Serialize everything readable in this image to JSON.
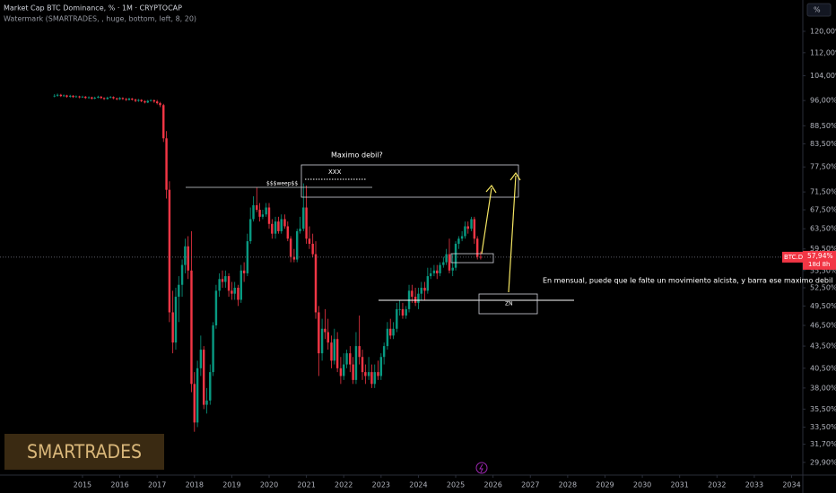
{
  "header": {
    "title": "Market Cap BTC Dominance, % · 1M · CRYPTOCAP",
    "subtitle": "Watermark (SMARTRADES, , huge, bottom, left, 8, 20)",
    "scale_button": "%"
  },
  "watermark": "SMARTRADES",
  "annotations": {
    "question": "Maximo debil?",
    "box_label": "XXX",
    "sweep_label": "$$$weep$$",
    "zone_label": "ZN",
    "note": "En mensual, puede que le falte un movimiento alcista, y barra ese maximo debil"
  },
  "chart_data": {
    "type": "candlestick",
    "log_scale": true,
    "grid": false,
    "up_color": "#089981",
    "down_color": "#f23645",
    "xlim": [
      2012.79,
      2034.3
    ],
    "xticks": [
      2015,
      2016,
      2017,
      2018,
      2019,
      2020,
      2021,
      2022,
      2023,
      2024,
      2025,
      2026,
      2027,
      2028,
      2029,
      2030,
      2031,
      2032,
      2033,
      2034
    ],
    "ylim": [
      28.7,
      125.3
    ],
    "yticks": [
      {
        "value": 120,
        "label": "120,00%"
      },
      {
        "value": 112,
        "label": "112,00%"
      },
      {
        "value": 104,
        "label": "104,00%"
      },
      {
        "value": 96,
        "label": "96,00%"
      },
      {
        "value": 88.5,
        "label": "88,50%"
      },
      {
        "value": 83.5,
        "label": "83,50%"
      },
      {
        "value": 77.5,
        "label": "77,50%"
      },
      {
        "value": 71.5,
        "label": "71,50%"
      },
      {
        "value": 67.5,
        "label": "67,50%"
      },
      {
        "value": 63.5,
        "label": "63,50%"
      },
      {
        "value": 59.5,
        "label": "59,50%"
      },
      {
        "value": 55.5,
        "label": "55,50%"
      },
      {
        "value": 52.5,
        "label": "52,50%"
      },
      {
        "value": 49.5,
        "label": "49,50%"
      },
      {
        "value": 46.5,
        "label": "46,50%"
      },
      {
        "value": 43.5,
        "label": "43,50%"
      },
      {
        "value": 40.5,
        "label": "40,50%"
      },
      {
        "value": 38,
        "label": "38,00%"
      },
      {
        "value": 35.5,
        "label": "35,50%"
      },
      {
        "value": 33.5,
        "label": "33,50%"
      },
      {
        "value": 31.7,
        "label": "31,70%"
      },
      {
        "value": 29.9,
        "label": "29,90%"
      }
    ],
    "price_tag": {
      "name": "BTC.D",
      "value": 57.94,
      "label": "57,94%",
      "countdown": "18d 8h"
    },
    "x": [
      2014.25,
      2014.33,
      2014.42,
      2014.5,
      2014.58,
      2014.67,
      2014.75,
      2014.83,
      2014.92,
      2015,
      2015.08,
      2015.17,
      2015.25,
      2015.33,
      2015.42,
      2015.5,
      2015.58,
      2015.67,
      2015.75,
      2015.83,
      2015.92,
      2016,
      2016.08,
      2016.17,
      2016.25,
      2016.33,
      2016.42,
      2016.5,
      2016.58,
      2016.67,
      2016.75,
      2016.83,
      2016.92,
      2017,
      2017.08,
      2017.17,
      2017.25,
      2017.33,
      2017.42,
      2017.5,
      2017.58,
      2017.67,
      2017.75,
      2017.83,
      2017.92,
      2018,
      2018.08,
      2018.17,
      2018.25,
      2018.33,
      2018.42,
      2018.5,
      2018.58,
      2018.67,
      2018.75,
      2018.83,
      2018.92,
      2019,
      2019.08,
      2019.17,
      2019.25,
      2019.33,
      2019.42,
      2019.5,
      2019.58,
      2019.67,
      2019.75,
      2019.83,
      2019.92,
      2020,
      2020.08,
      2020.17,
      2020.25,
      2020.33,
      2020.42,
      2020.5,
      2020.58,
      2020.67,
      2020.75,
      2020.83,
      2020.92,
      2021,
      2021.08,
      2021.17,
      2021.25,
      2021.33,
      2021.42,
      2021.5,
      2021.58,
      2021.67,
      2021.75,
      2021.83,
      2021.92,
      2022,
      2022.08,
      2022.17,
      2022.25,
      2022.33,
      2022.42,
      2022.5,
      2022.58,
      2022.67,
      2022.75,
      2022.83,
      2022.92,
      2023,
      2023.08,
      2023.17,
      2023.25,
      2023.33,
      2023.42,
      2023.5,
      2023.58,
      2023.67,
      2023.75,
      2023.83,
      2023.92,
      2024,
      2024.08,
      2024.17,
      2024.25,
      2024.33,
      2024.42,
      2024.5,
      2024.58,
      2024.67,
      2024.75,
      2024.83,
      2024.92,
      2025,
      2025.08,
      2025.17,
      2025.25,
      2025.33,
      2025.42,
      2025.5,
      2025.58,
      2025.67
    ],
    "candles": [
      [
        97.3,
        98.0,
        97.0,
        97.5
      ],
      [
        97.5,
        98.2,
        97.2,
        97.8
      ],
      [
        97.8,
        98.1,
        97.1,
        97.4
      ],
      [
        97.4,
        97.9,
        97.1,
        97.6
      ],
      [
        97.6,
        97.8,
        96.9,
        97.2
      ],
      [
        97.2,
        97.8,
        96.9,
        97.5
      ],
      [
        97.5,
        97.7,
        96.8,
        97.1
      ],
      [
        97.1,
        97.6,
        96.9,
        97.3
      ],
      [
        97.3,
        97.5,
        96.7,
        97.0
      ],
      [
        97.0,
        97.5,
        96.8,
        97.2
      ],
      [
        97.2,
        97.4,
        96.5,
        96.8
      ],
      [
        96.8,
        97.3,
        96.6,
        97.0
      ],
      [
        97.0,
        97.2,
        96.3,
        96.6
      ],
      [
        96.6,
        97.2,
        96.4,
        96.9
      ],
      [
        96.9,
        97.5,
        96.7,
        97.2
      ],
      [
        97.2,
        97.4,
        96.5,
        96.8
      ],
      [
        96.8,
        97.0,
        96.2,
        96.5
      ],
      [
        96.5,
        97.2,
        96.3,
        96.9
      ],
      [
        96.9,
        97.4,
        96.7,
        97.1
      ],
      [
        97.1,
        97.3,
        96.4,
        96.7
      ],
      [
        96.7,
        96.9,
        96.1,
        96.4
      ],
      [
        96.4,
        97.1,
        96.2,
        96.8
      ],
      [
        96.8,
        97.0,
        96.2,
        96.5
      ],
      [
        96.5,
        96.8,
        95.9,
        96.2
      ],
      [
        96.2,
        96.9,
        96.0,
        96.6
      ],
      [
        96.6,
        96.8,
        96.0,
        96.3
      ],
      [
        96.3,
        96.6,
        95.5,
        95.9
      ],
      [
        95.9,
        96.5,
        95.6,
        96.2
      ],
      [
        96.2,
        96.4,
        95.5,
        95.8
      ],
      [
        95.8,
        96.1,
        95.1,
        95.4
      ],
      [
        95.4,
        96.2,
        95.2,
        95.9
      ],
      [
        95.9,
        96.4,
        95.7,
        96.1
      ],
      [
        96.1,
        96.3,
        95.3,
        95.7
      ],
      [
        95.7,
        96.2,
        94.8,
        95.2
      ],
      [
        95.2,
        95.6,
        94.0,
        94.6
      ],
      [
        94.6,
        95.0,
        84.0,
        85.0
      ],
      [
        85.0,
        87.0,
        70.0,
        72.0
      ],
      [
        72.0,
        74.0,
        47.0,
        48.5
      ],
      [
        48.5,
        52.0,
        42.5,
        44.0
      ],
      [
        44.0,
        52.5,
        43.0,
        51.0
      ],
      [
        51.0,
        54.5,
        47.0,
        53.0
      ],
      [
        53.0,
        57.5,
        51.0,
        56.5
      ],
      [
        56.5,
        61.5,
        55.0,
        60.0
      ],
      [
        60.0,
        62.0,
        54.0,
        55.5
      ],
      [
        55.5,
        63.0,
        37.5,
        38.5
      ],
      [
        38.5,
        40.0,
        33.0,
        34.0
      ],
      [
        34.0,
        41.5,
        33.5,
        40.5
      ],
      [
        40.5,
        45.0,
        39.5,
        43.0
      ],
      [
        43.0,
        43.5,
        35.5,
        36.0
      ],
      [
        36.0,
        38.0,
        35.0,
        36.5
      ],
      [
        36.5,
        41.0,
        36.0,
        40.0
      ],
      [
        40.0,
        47.0,
        39.5,
        46.5
      ],
      [
        46.5,
        53.0,
        46.0,
        52.0
      ],
      [
        52.0,
        55.0,
        51.0,
        54.0
      ],
      [
        54.0,
        55.5,
        52.5,
        53.5
      ],
      [
        53.5,
        55.5,
        52.5,
        54.5
      ],
      [
        54.5,
        55.0,
        51.0,
        52.0
      ],
      [
        52.0,
        53.5,
        50.5,
        51.5
      ],
      [
        51.5,
        53.5,
        50.5,
        52.5
      ],
      [
        52.5,
        53.0,
        49.5,
        50.5
      ],
      [
        50.5,
        56.5,
        50.0,
        55.5
      ],
      [
        55.5,
        57.0,
        53.5,
        55.0
      ],
      [
        55.0,
        62.5,
        54.5,
        61.0
      ],
      [
        61.0,
        68.0,
        60.5,
        65.5
      ],
      [
        65.5,
        70.5,
        65.0,
        68.5
      ],
      [
        68.5,
        72.5,
        67.0,
        67.5
      ],
      [
        67.5,
        69.0,
        65.0,
        66.0
      ],
      [
        66.0,
        67.5,
        65.5,
        66.5
      ],
      [
        66.5,
        69.0,
        66.0,
        68.0
      ],
      [
        68.0,
        69.0,
        63.5,
        64.5
      ],
      [
        64.5,
        65.5,
        61.5,
        62.5
      ],
      [
        62.5,
        66.0,
        61.5,
        65.0
      ],
      [
        65.0,
        66.0,
        62.5,
        63.0
      ],
      [
        63.0,
        66.5,
        62.5,
        65.5
      ],
      [
        65.5,
        66.5,
        63.5,
        64.0
      ],
      [
        64.0,
        65.0,
        61.0,
        61.5
      ],
      [
        61.5,
        62.0,
        57.0,
        58.0
      ],
      [
        58.0,
        59.5,
        57.0,
        57.5
      ],
      [
        57.5,
        63.5,
        57.0,
        63.0
      ],
      [
        63.0,
        66.0,
        62.5,
        63.5
      ],
      [
        63.5,
        73.5,
        63.0,
        68.0
      ],
      [
        68.0,
        73.0,
        60.5,
        61.5
      ],
      [
        61.5,
        64.0,
        59.5,
        60.5
      ],
      [
        60.5,
        62.5,
        58.0,
        58.5
      ],
      [
        58.5,
        61.0,
        47.5,
        48.5
      ],
      [
        48.5,
        49.5,
        39.5,
        42.5
      ],
      [
        42.5,
        47.5,
        41.5,
        46.0
      ],
      [
        46.0,
        49.0,
        44.5,
        45.5
      ],
      [
        45.5,
        47.5,
        43.0,
        44.0
      ],
      [
        44.0,
        45.0,
        40.5,
        41.5
      ],
      [
        41.5,
        46.0,
        41.0,
        44.5
      ],
      [
        44.5,
        45.5,
        40.0,
        40.5
      ],
      [
        40.5,
        42.0,
        38.5,
        39.5
      ],
      [
        39.5,
        42.5,
        39.0,
        41.0
      ],
      [
        41.0,
        43.0,
        40.5,
        42.5
      ],
      [
        42.5,
        43.5,
        40.0,
        41.0
      ],
      [
        41.0,
        42.0,
        38.5,
        39.0
      ],
      [
        39.0,
        45.5,
        38.5,
        43.5
      ],
      [
        43.5,
        48.0,
        41.0,
        42.0
      ],
      [
        42.0,
        43.0,
        39.0,
        40.0
      ],
      [
        40.0,
        41.0,
        38.5,
        39.5
      ],
      [
        39.5,
        42.0,
        39.0,
        40.0
      ],
      [
        40.0,
        41.0,
        38.0,
        38.5
      ],
      [
        38.5,
        41.0,
        38.0,
        40.0
      ],
      [
        40.0,
        41.5,
        39.0,
        39.5
      ],
      [
        39.5,
        42.5,
        39.0,
        42.0
      ],
      [
        42.0,
        44.0,
        41.0,
        43.5
      ],
      [
        43.5,
        47.0,
        43.0,
        46.0
      ],
      [
        46.0,
        47.5,
        44.5,
        45.0
      ],
      [
        45.0,
        47.0,
        44.5,
        46.0
      ],
      [
        46.0,
        50.0,
        45.5,
        49.0
      ],
      [
        49.0,
        50.5,
        48.0,
        49.0
      ],
      [
        49.0,
        50.0,
        47.5,
        48.0
      ],
      [
        48.0,
        49.5,
        47.5,
        49.0
      ],
      [
        49.0,
        53.0,
        48.5,
        52.0
      ],
      [
        52.0,
        53.0,
        50.0,
        51.0
      ],
      [
        51.0,
        52.5,
        49.5,
        50.0
      ],
      [
        50.0,
        52.5,
        49.0,
        51.5
      ],
      [
        51.5,
        53.5,
        50.5,
        52.5
      ],
      [
        52.5,
        53.5,
        50.5,
        52.0
      ],
      [
        52.0,
        56.0,
        51.5,
        54.5
      ],
      [
        54.5,
        56.0,
        54.0,
        55.0
      ],
      [
        55.0,
        56.5,
        54.5,
        55.5
      ],
      [
        55.5,
        56.5,
        54.0,
        55.0
      ],
      [
        55.0,
        57.0,
        54.5,
        56.5
      ],
      [
        56.5,
        58.0,
        56.0,
        57.0
      ],
      [
        57.0,
        59.5,
        56.5,
        58.5
      ],
      [
        58.5,
        61.5,
        55.0,
        55.5
      ],
      [
        55.5,
        58.5,
        54.5,
        56.0
      ],
      [
        56.0,
        61.0,
        55.5,
        60.5
      ],
      [
        60.5,
        62.0,
        59.5,
        61.5
      ],
      [
        61.5,
        63.0,
        61.0,
        62.0
      ],
      [
        62.0,
        65.0,
        61.5,
        64.0
      ],
      [
        64.0,
        65.0,
        62.5,
        63.5
      ],
      [
        63.5,
        66.0,
        63.0,
        65.5
      ],
      [
        65.5,
        66.0,
        60.5,
        61.5
      ],
      [
        61.5,
        62.0,
        57.5,
        58.0
      ],
      [
        58.0,
        59.0,
        57.5,
        57.9
      ]
    ]
  }
}
